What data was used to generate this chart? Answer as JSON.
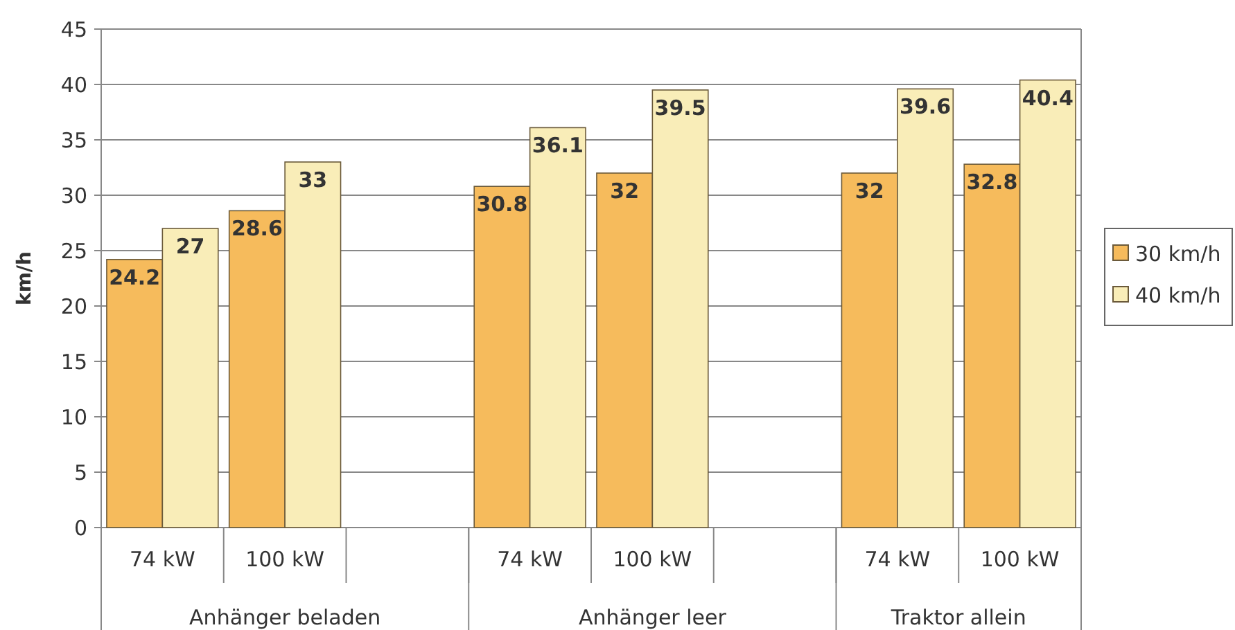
{
  "chart_data": {
    "type": "bar",
    "ylabel": "km/h",
    "categories": [
      "74 kW",
      "100 kW",
      null,
      "74 kW",
      "100 kW",
      null,
      "74 kW",
      "100 kW"
    ],
    "series": [
      {
        "name": "30 km/h",
        "color": "#f6bb5c",
        "values": [
          24.2,
          28.6,
          null,
          30.8,
          32,
          null,
          32,
          32.8
        ]
      },
      {
        "name": "40 km/h",
        "color": "#f9edb8",
        "values": [
          27,
          33,
          null,
          36.1,
          39.5,
          null,
          39.6,
          40.4
        ]
      }
    ],
    "annotations": [
      "Anhänger beladen",
      "Anhänger leer",
      "Traktor allein"
    ],
    "ylim": [
      0,
      45
    ],
    "yticks": [
      0,
      5,
      10,
      15,
      20,
      25,
      30,
      35,
      40,
      45
    ],
    "grid": "y",
    "legend": "right",
    "data_labels": true
  }
}
